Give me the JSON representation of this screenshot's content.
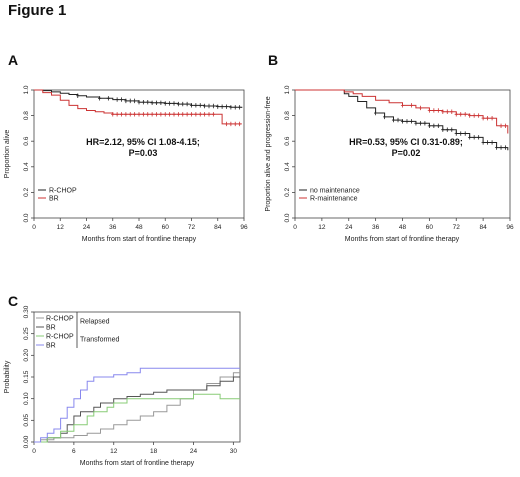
{
  "figure_title": "Figure 1",
  "chart_data": [
    {
      "panel": "A",
      "type": "line",
      "subtype": "kaplan-meier",
      "xlabel": "Months from start of frontline therapy",
      "ylabel": "Proportion alive",
      "xlim": [
        0,
        96
      ],
      "ylim": [
        0,
        1
      ],
      "xticks": [
        "0",
        "12",
        "24",
        "36",
        "48",
        "60",
        "72",
        "84",
        "96"
      ],
      "yticks": [
        "0.0",
        "0.2",
        "0.4",
        "0.6",
        "0.8",
        "1.0"
      ],
      "legend_position": "bottom-left",
      "annotation": [
        "HR=2.12, 95% CI 1.08-4.15;",
        "P=0.03"
      ],
      "series": [
        {
          "name": "R-CHOP",
          "color": "#222222",
          "points": [
            [
              0,
              1.0
            ],
            [
              4,
              0.995
            ],
            [
              8,
              0.985
            ],
            [
              12,
              0.975
            ],
            [
              16,
              0.965
            ],
            [
              20,
              0.955
            ],
            [
              24,
              0.945
            ],
            [
              30,
              0.935
            ],
            [
              36,
              0.925
            ],
            [
              42,
              0.915
            ],
            [
              48,
              0.905
            ],
            [
              54,
              0.9
            ],
            [
              60,
              0.895
            ],
            [
              66,
              0.89
            ],
            [
              72,
              0.88
            ],
            [
              78,
              0.875
            ],
            [
              84,
              0.87
            ],
            [
              90,
              0.865
            ],
            [
              95,
              0.86
            ]
          ],
          "censor_x": [
            20,
            30,
            34,
            38,
            40,
            42,
            44,
            46,
            48,
            50,
            52,
            54,
            56,
            58,
            60,
            62,
            64,
            66,
            68,
            70,
            72,
            74,
            76,
            78,
            80,
            82,
            84,
            86,
            88,
            90,
            92,
            94
          ]
        },
        {
          "name": "BR",
          "color": "#cc3333",
          "points": [
            [
              0,
              1.0
            ],
            [
              4,
              0.98
            ],
            [
              8,
              0.96
            ],
            [
              12,
              0.92
            ],
            [
              16,
              0.88
            ],
            [
              20,
              0.855
            ],
            [
              24,
              0.84
            ],
            [
              28,
              0.83
            ],
            [
              32,
              0.82
            ],
            [
              36,
              0.81
            ],
            [
              60,
              0.81
            ],
            [
              84,
              0.81
            ],
            [
              86,
              0.735
            ],
            [
              95,
              0.735
            ]
          ],
          "censor_x": [
            36,
            38,
            40,
            42,
            44,
            46,
            48,
            50,
            52,
            54,
            56,
            58,
            60,
            62,
            64,
            66,
            68,
            70,
            72,
            74,
            76,
            78,
            80,
            82,
            88,
            90,
            92,
            94
          ]
        }
      ]
    },
    {
      "panel": "B",
      "type": "line",
      "subtype": "kaplan-meier",
      "xlabel": "Months from start of frontline therapy",
      "ylabel": "Proportion alive and progression-free",
      "xlim": [
        0,
        96
      ],
      "ylim": [
        0,
        1
      ],
      "xticks": [
        "0",
        "12",
        "24",
        "36",
        "48",
        "60",
        "72",
        "84",
        "96"
      ],
      "yticks": [
        "0.0",
        "0.2",
        "0.4",
        "0.6",
        "0.8",
        "1.0"
      ],
      "legend_position": "bottom-left",
      "annotation": [
        "HR=0.53, 95% CI 0.31-0.89;",
        "P=0.02"
      ],
      "series": [
        {
          "name": "no maintenance",
          "color": "#222222",
          "points": [
            [
              0,
              1.0
            ],
            [
              20,
              1.0
            ],
            [
              22,
              0.97
            ],
            [
              24,
              0.95
            ],
            [
              28,
              0.91
            ],
            [
              32,
              0.86
            ],
            [
              36,
              0.82
            ],
            [
              40,
              0.79
            ],
            [
              44,
              0.765
            ],
            [
              48,
              0.755
            ],
            [
              54,
              0.74
            ],
            [
              60,
              0.72
            ],
            [
              66,
              0.69
            ],
            [
              72,
              0.66
            ],
            [
              78,
              0.63
            ],
            [
              84,
              0.59
            ],
            [
              90,
              0.55
            ],
            [
              95,
              0.53
            ]
          ],
          "censor_x": [
            36,
            40,
            44,
            46,
            48,
            50,
            52,
            54,
            56,
            58,
            60,
            62,
            64,
            66,
            68,
            70,
            72,
            74,
            76,
            78,
            80,
            82,
            84,
            86,
            88,
            90,
            92,
            94
          ]
        },
        {
          "name": "R-maintenance",
          "color": "#cc3333",
          "points": [
            [
              0,
              1.0
            ],
            [
              20,
              1.0
            ],
            [
              22,
              0.985
            ],
            [
              26,
              0.97
            ],
            [
              30,
              0.95
            ],
            [
              36,
              0.92
            ],
            [
              42,
              0.9
            ],
            [
              48,
              0.88
            ],
            [
              54,
              0.86
            ],
            [
              60,
              0.84
            ],
            [
              66,
              0.83
            ],
            [
              72,
              0.81
            ],
            [
              78,
              0.8
            ],
            [
              84,
              0.78
            ],
            [
              90,
              0.72
            ],
            [
              95,
              0.66
            ]
          ],
          "censor_x": [
            48,
            52,
            56,
            60,
            62,
            64,
            66,
            68,
            70,
            72,
            74,
            76,
            78,
            80,
            82,
            84,
            86,
            88,
            92,
            94
          ]
        }
      ]
    },
    {
      "panel": "C",
      "type": "line",
      "subtype": "cumulative-incidence",
      "xlabel": "Months from start of frontline therapy",
      "ylabel": "Probability",
      "xlim": [
        0,
        31
      ],
      "ylim": [
        0,
        0.3
      ],
      "xticks": [
        "0",
        "6",
        "12",
        "18",
        "24",
        "30"
      ],
      "yticks": [
        "0.00",
        "0.05",
        "0.10",
        "0.15",
        "0.20",
        "0.25",
        "0.30"
      ],
      "legend_position": "top-left",
      "legend_groups": [
        "Relapsed",
        "Transformed"
      ],
      "series": [
        {
          "name": "R-CHOP",
          "group": "Relapsed",
          "color": "#999999",
          "points": [
            [
              0,
              0.0
            ],
            [
              1,
              0.005
            ],
            [
              3,
              0.01
            ],
            [
              6,
              0.015
            ],
            [
              8,
              0.02
            ],
            [
              10,
              0.03
            ],
            [
              12,
              0.04
            ],
            [
              14,
              0.05
            ],
            [
              16,
              0.06
            ],
            [
              18,
              0.07
            ],
            [
              20,
              0.085
            ],
            [
              22,
              0.1
            ],
            [
              24,
              0.12
            ],
            [
              26,
              0.135
            ],
            [
              28,
              0.15
            ],
            [
              30,
              0.16
            ],
            [
              31,
              0.16
            ]
          ]
        },
        {
          "name": "BR",
          "group": "Relapsed",
          "color": "#555555",
          "points": [
            [
              0,
              0.0
            ],
            [
              2,
              0.01
            ],
            [
              4,
              0.02
            ],
            [
              5,
              0.04
            ],
            [
              6,
              0.06
            ],
            [
              7,
              0.07
            ],
            [
              9,
              0.08
            ],
            [
              10,
              0.09
            ],
            [
              12,
              0.1
            ],
            [
              14,
              0.105
            ],
            [
              16,
              0.11
            ],
            [
              18,
              0.115
            ],
            [
              20,
              0.12
            ],
            [
              24,
              0.12
            ],
            [
              26,
              0.13
            ],
            [
              28,
              0.14
            ],
            [
              30,
              0.15
            ],
            [
              31,
              0.15
            ]
          ]
        },
        {
          "name": "R-CHOP",
          "group": "Transformed",
          "color": "#88cc77",
          "points": [
            [
              0,
              0.0
            ],
            [
              2,
              0.01
            ],
            [
              4,
              0.025
            ],
            [
              6,
              0.04
            ],
            [
              8,
              0.06
            ],
            [
              9,
              0.07
            ],
            [
              11,
              0.08
            ],
            [
              12,
              0.09
            ],
            [
              14,
              0.1
            ],
            [
              22,
              0.1
            ],
            [
              24,
              0.11
            ],
            [
              26,
              0.11
            ],
            [
              28,
              0.1
            ],
            [
              31,
              0.1
            ]
          ]
        },
        {
          "name": "BR",
          "group": "Transformed",
          "color": "#8888ee",
          "points": [
            [
              0,
              0.0
            ],
            [
              1,
              0.01
            ],
            [
              2,
              0.02
            ],
            [
              3,
              0.03
            ],
            [
              4,
              0.055
            ],
            [
              5,
              0.08
            ],
            [
              6,
              0.1
            ],
            [
              7,
              0.12
            ],
            [
              8,
              0.14
            ],
            [
              9,
              0.15
            ],
            [
              12,
              0.155
            ],
            [
              14,
              0.16
            ],
            [
              16,
              0.17
            ],
            [
              31,
              0.17
            ]
          ]
        }
      ]
    }
  ]
}
